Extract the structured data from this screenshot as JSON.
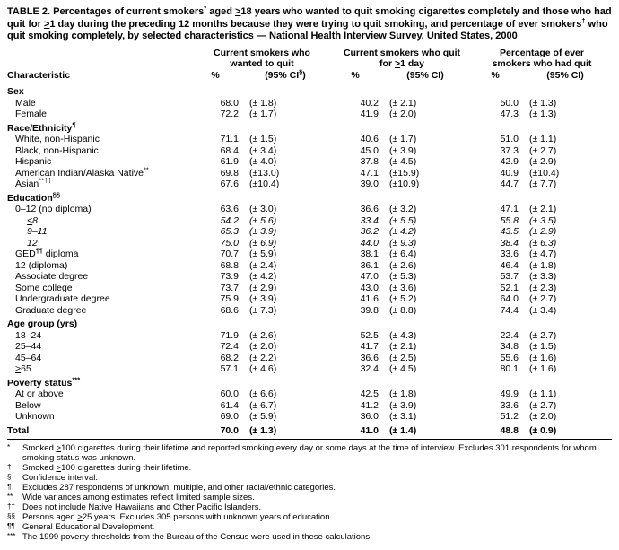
{
  "title_segments": [
    {
      "t": "TABLE 2. Percentages of current smokers"
    },
    {
      "sup": "*"
    },
    {
      "t": " aged "
    },
    {
      "u": ">"
    },
    {
      "t": "18 years who wanted to quit smoking cigarettes completely and those who had quit for "
    },
    {
      "u": ">"
    },
    {
      "t": "1 day during the preceding 12 months because they were trying to quit smoking, and percentage of ever smokers"
    },
    {
      "sup": "†"
    },
    {
      "t": " who quit smoking completely, by selected characteristics — National Health Interview Survey, United States, 2000"
    }
  ],
  "header": {
    "characteristic": "Characteristic",
    "groups": [
      {
        "label": [
          {
            "t": "Current smokers who wanted to quit"
          }
        ],
        "pct": "%",
        "ci": [
          {
            "t": "(95% CI"
          },
          {
            "sup": "§"
          },
          {
            "t": ")"
          }
        ]
      },
      {
        "label": [
          {
            "t": "Current smokers who quit for "
          },
          {
            "u": ">"
          },
          {
            "t": "1 day"
          }
        ],
        "pct": "%",
        "ci": [
          {
            "t": "(95% CI)"
          }
        ]
      },
      {
        "label": [
          {
            "t": "Percentage of ever smokers who had quit"
          }
        ],
        "pct": "%",
        "ci": [
          {
            "t": "(95% CI)"
          }
        ]
      }
    ]
  },
  "rows": [
    {
      "type": "section",
      "label": [
        {
          "t": "Sex"
        }
      ]
    },
    {
      "type": "data",
      "indent": 1,
      "label": [
        {
          "t": "Male"
        }
      ],
      "values": [
        "68.0",
        "(± 1.8)",
        "40.2",
        "(± 2.1)",
        "50.0",
        "(± 1.3)"
      ]
    },
    {
      "type": "data",
      "indent": 1,
      "label": [
        {
          "t": "Female"
        }
      ],
      "values": [
        "72.2",
        "(± 1.7)",
        "41.9",
        "(± 2.0)",
        "47.3",
        "(± 1.3)"
      ]
    },
    {
      "type": "section",
      "label": [
        {
          "t": "Race/Ethnicity"
        },
        {
          "sup": "¶"
        }
      ]
    },
    {
      "type": "data",
      "indent": 1,
      "label": [
        {
          "t": "White, non-Hispanic"
        }
      ],
      "values": [
        "71.1",
        "(± 1.5)",
        "40.6",
        "(± 1.7)",
        "51.0",
        "(± 1.1)"
      ]
    },
    {
      "type": "data",
      "indent": 1,
      "label": [
        {
          "t": "Black, non-Hispanic"
        }
      ],
      "values": [
        "68.4",
        "(± 3.4)",
        "45.0",
        "(± 3.9)",
        "37.3",
        "(± 2.7)"
      ]
    },
    {
      "type": "data",
      "indent": 1,
      "label": [
        {
          "t": "Hispanic"
        }
      ],
      "values": [
        "61.9",
        "(± 4.0)",
        "37.8",
        "(± 4.5)",
        "42.9",
        "(± 2.9)"
      ]
    },
    {
      "type": "data",
      "indent": 1,
      "label": [
        {
          "t": "American Indian/Alaska Native"
        },
        {
          "sup": "**"
        }
      ],
      "values": [
        "69.8",
        "(±13.0)",
        "47.1",
        "(±15.9)",
        "40.9",
        "(±10.4)"
      ]
    },
    {
      "type": "data",
      "indent": 1,
      "label": [
        {
          "t": "Asian"
        },
        {
          "sup": "**††"
        }
      ],
      "values": [
        "67.6",
        "(±10.4)",
        "39.0",
        "(±10.9)",
        "44.7",
        "(± 7.7)"
      ]
    },
    {
      "type": "section",
      "label": [
        {
          "t": "Education"
        },
        {
          "sup": "§§"
        }
      ]
    },
    {
      "type": "data",
      "indent": 1,
      "label": [
        {
          "t": "0–12 (no diploma)"
        }
      ],
      "values": [
        "63.6",
        "(± 3.0)",
        "36.6",
        "(± 3.2)",
        "47.1",
        "(± 2.1)"
      ]
    },
    {
      "type": "data",
      "indent": 2,
      "italic": true,
      "label": [
        {
          "u": "<"
        },
        {
          "t": "8"
        }
      ],
      "values": [
        "54.2",
        "(± 5.6)",
        "33.4",
        "(± 5.5)",
        "55.8",
        "(± 3.5)"
      ]
    },
    {
      "type": "data",
      "indent": 2,
      "italic": true,
      "label": [
        {
          "t": "9–11"
        }
      ],
      "values": [
        "65.3",
        "(± 3.9)",
        "36.2",
        "(± 4.2)",
        "43.5",
        "(± 2.9)"
      ]
    },
    {
      "type": "data",
      "indent": 2,
      "italic": true,
      "label": [
        {
          "t": "12"
        }
      ],
      "values": [
        "75.0",
        "(± 6.9)",
        "44.0",
        "(± 9.3)",
        "38.4",
        "(± 6.3)"
      ]
    },
    {
      "type": "data",
      "indent": 1,
      "label": [
        {
          "t": "GED"
        },
        {
          "sup": "¶¶"
        },
        {
          "t": " diploma"
        }
      ],
      "values": [
        "70.7",
        "(± 5.9)",
        "38.1",
        "(± 6.4)",
        "33.6",
        "(± 4.7)"
      ]
    },
    {
      "type": "data",
      "indent": 1,
      "label": [
        {
          "t": "12 (diploma)"
        }
      ],
      "values": [
        "68.8",
        "(± 2.4)",
        "36.1",
        "(± 2.6)",
        "46.4",
        "(± 1.8)"
      ]
    },
    {
      "type": "data",
      "indent": 1,
      "label": [
        {
          "t": "Associate degree"
        }
      ],
      "values": [
        "73.9",
        "(± 4.2)",
        "47.0",
        "(± 5.3)",
        "53.7",
        "(± 3.3)"
      ]
    },
    {
      "type": "data",
      "indent": 1,
      "label": [
        {
          "t": "Some college"
        }
      ],
      "values": [
        "73.7",
        "(± 2.9)",
        "43.0",
        "(± 3.6)",
        "52.1",
        "(± 2.3)"
      ]
    },
    {
      "type": "data",
      "indent": 1,
      "label": [
        {
          "t": "Undergraduate degree"
        }
      ],
      "values": [
        "75.9",
        "(± 3.9)",
        "41.6",
        "(± 5.2)",
        "64.0",
        "(± 2.7)"
      ]
    },
    {
      "type": "data",
      "indent": 1,
      "label": [
        {
          "t": "Graduate degree"
        }
      ],
      "values": [
        "68.6",
        "(± 7.3)",
        "39.8",
        "(± 8.8)",
        "74.4",
        "(± 3.4)"
      ]
    },
    {
      "type": "section",
      "label": [
        {
          "t": "Age group (yrs)"
        }
      ]
    },
    {
      "type": "data",
      "indent": 1,
      "label": [
        {
          "t": "18–24"
        }
      ],
      "values": [
        "71.9",
        "(± 2.6)",
        "52.5",
        "(± 4.3)",
        "22.4",
        "(± 2.7)"
      ]
    },
    {
      "type": "data",
      "indent": 1,
      "label": [
        {
          "t": "25–44"
        }
      ],
      "values": [
        "72.4",
        "(± 2.0)",
        "41.7",
        "(± 2.1)",
        "34.8",
        "(± 1.5)"
      ]
    },
    {
      "type": "data",
      "indent": 1,
      "label": [
        {
          "t": "45–64"
        }
      ],
      "values": [
        "68.2",
        "(± 2.2)",
        "36.6",
        "(± 2.5)",
        "55.6",
        "(± 1.6)"
      ]
    },
    {
      "type": "data",
      "indent": 1,
      "label": [
        {
          "u": ">"
        },
        {
          "t": "65"
        }
      ],
      "values": [
        "57.1",
        "(± 4.6)",
        "32.4",
        "(± 4.5)",
        "80.1",
        "(± 1.6)"
      ]
    },
    {
      "type": "section",
      "label": [
        {
          "t": "Poverty status"
        },
        {
          "sup": "***"
        }
      ]
    },
    {
      "type": "data",
      "indent": 1,
      "label": [
        {
          "t": "At or above"
        }
      ],
      "values": [
        "60.0",
        "(± 6.6)",
        "42.5",
        "(± 1.8)",
        "49.9",
        "(± 1.1)"
      ]
    },
    {
      "type": "data",
      "indent": 1,
      "label": [
        {
          "t": "Below"
        }
      ],
      "values": [
        "61.4",
        "(± 6.7)",
        "41.2",
        "(± 3.9)",
        "33.6",
        "(± 2.7)"
      ]
    },
    {
      "type": "data",
      "indent": 1,
      "label": [
        {
          "t": "Unknown"
        }
      ],
      "values": [
        "69.0",
        "(± 5.9)",
        "36.0",
        "(± 3.1)",
        "51.2",
        "(± 2.0)"
      ]
    },
    {
      "type": "total",
      "label": [
        {
          "t": "Total"
        }
      ],
      "values": [
        "70.0",
        "(± 1.3)",
        "41.0",
        "(± 1.4)",
        "48.8",
        "(± 0.9)"
      ]
    }
  ],
  "footnotes": [
    {
      "marker": "*",
      "segments": [
        {
          "t": "Smoked "
        },
        {
          "u": ">"
        },
        {
          "t": "100 cigarettes during their lifetime and reported smoking every day or some days at the time of interview. Excludes 301 respondents for whom smoking status was unknown."
        }
      ]
    },
    {
      "marker": "†",
      "segments": [
        {
          "t": "Smoked "
        },
        {
          "u": ">"
        },
        {
          "t": "100 cigarettes during their lifetime."
        }
      ]
    },
    {
      "marker": "§",
      "segments": [
        {
          "t": "Confidence interval."
        }
      ]
    },
    {
      "marker": "¶",
      "segments": [
        {
          "t": "Excludes 287 respondents of unknown, multiple, and other racial/ethnic categories."
        }
      ]
    },
    {
      "marker": "**",
      "segments": [
        {
          "t": "Wide variances among estimates reflect limited sample sizes."
        }
      ]
    },
    {
      "marker": "††",
      "segments": [
        {
          "t": "Does not include Native Hawaiians and Other Pacific Islanders."
        }
      ]
    },
    {
      "marker": "§§",
      "segments": [
        {
          "t": "Persons aged "
        },
        {
          "u": ">"
        },
        {
          "t": "25 years. Excludes 305 persons with unknown years of education."
        }
      ]
    },
    {
      "marker": "¶¶",
      "segments": [
        {
          "t": "General Educational Development."
        }
      ]
    },
    {
      "marker": "***",
      "segments": [
        {
          "t": "The 1999 poverty thresholds from the Bureau of the Census were used in these calculations."
        }
      ]
    }
  ]
}
